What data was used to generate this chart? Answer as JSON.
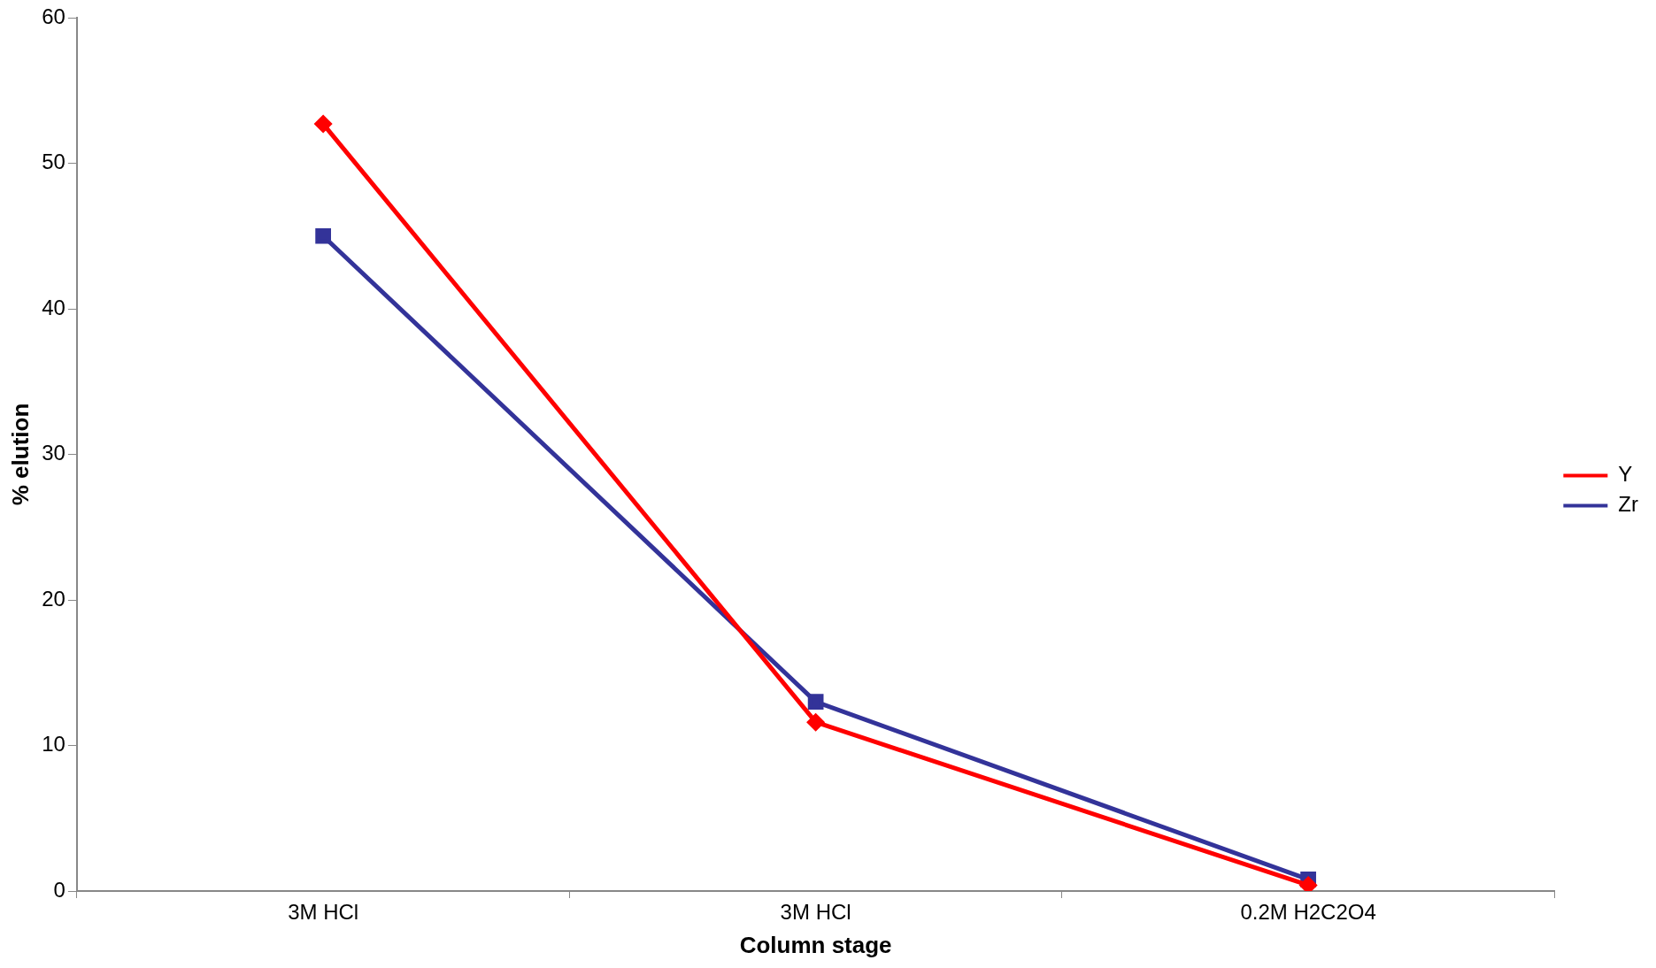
{
  "chart_data": {
    "type": "line",
    "xlabel": "Column stage",
    "ylabel": "% elution",
    "categories": [
      "3M HCl",
      "3M HCl",
      "0.2M H2C2O4"
    ],
    "series": [
      {
        "name": "Y",
        "color": "#ff0000",
        "marker": "diamond",
        "values": [
          52.7,
          11.6,
          0.4
        ]
      },
      {
        "name": "Zr",
        "color": "#333399",
        "marker": "square",
        "values": [
          45,
          13,
          0.8
        ]
      }
    ],
    "ylim": [
      0,
      60
    ],
    "yticks": [
      0,
      10,
      20,
      30,
      40,
      50,
      60
    ],
    "grid": false,
    "legend": "right",
    "line_style": "solid"
  }
}
